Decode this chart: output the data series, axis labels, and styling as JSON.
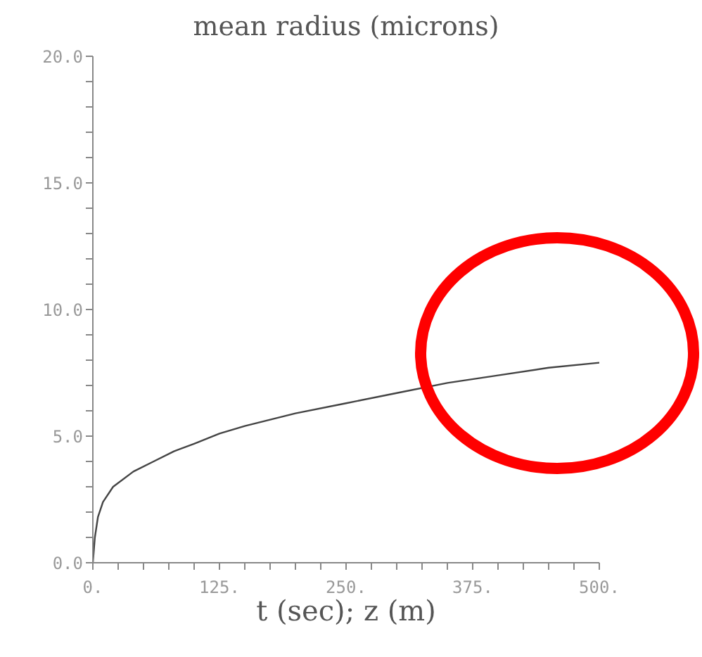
{
  "chart_data": {
    "type": "line",
    "title": "mean radius (microns)",
    "xlabel": "t (sec); z (m)",
    "x": [
      0,
      2,
      5,
      10,
      20,
      40,
      60,
      80,
      100,
      125,
      150,
      200,
      250,
      300,
      350,
      400,
      450,
      500
    ],
    "series": [
      {
        "color": "#444444",
        "values": [
          0,
          1.0,
          1.8,
          2.4,
          3.0,
          3.6,
          4.0,
          4.4,
          4.7,
          5.1,
          5.4,
          5.9,
          6.3,
          6.7,
          7.1,
          7.4,
          7.7,
          7.9
        ]
      }
    ],
    "xlim": [
      0,
      500
    ],
    "xticks": [
      {
        "value": 0,
        "label": "0."
      },
      {
        "value": 25,
        "label": null
      },
      {
        "value": 50,
        "label": null
      },
      {
        "value": 75,
        "label": null
      },
      {
        "value": 100,
        "label": null
      },
      {
        "value": 125,
        "label": "125."
      },
      {
        "value": 150,
        "label": null
      },
      {
        "value": 175,
        "label": null
      },
      {
        "value": 200,
        "label": null
      },
      {
        "value": 225,
        "label": null
      },
      {
        "value": 250,
        "label": "250."
      },
      {
        "value": 275,
        "label": null
      },
      {
        "value": 300,
        "label": null
      },
      {
        "value": 325,
        "label": null
      },
      {
        "value": 350,
        "label": null
      },
      {
        "value": 375,
        "label": "375."
      },
      {
        "value": 400,
        "label": null
      },
      {
        "value": 425,
        "label": null
      },
      {
        "value": 450,
        "label": null
      },
      {
        "value": 475,
        "label": null
      },
      {
        "value": 500,
        "label": "500."
      }
    ],
    "ylim": [
      0,
      20
    ],
    "yticks": [
      {
        "value": 0,
        "label": "0.0"
      },
      {
        "value": 1,
        "label": null
      },
      {
        "value": 2,
        "label": null
      },
      {
        "value": 3,
        "label": null
      },
      {
        "value": 4,
        "label": null
      },
      {
        "value": 5,
        "label": "5.0"
      },
      {
        "value": 6,
        "label": null
      },
      {
        "value": 7,
        "label": null
      },
      {
        "value": 8,
        "label": null
      },
      {
        "value": 9,
        "label": null
      },
      {
        "value": 10,
        "label": "10.0"
      },
      {
        "value": 11,
        "label": null
      },
      {
        "value": 12,
        "label": null
      },
      {
        "value": 13,
        "label": null
      },
      {
        "value": 14,
        "label": null
      },
      {
        "value": 15,
        "label": "15.0"
      },
      {
        "value": 16,
        "label": null
      },
      {
        "value": 17,
        "label": null
      },
      {
        "value": 18,
        "label": null
      },
      {
        "value": 19,
        "label": null
      },
      {
        "value": 20,
        "label": "20.0"
      }
    ],
    "grid": false,
    "legend": false,
    "marker": "none",
    "line_style": "solid"
  }
}
